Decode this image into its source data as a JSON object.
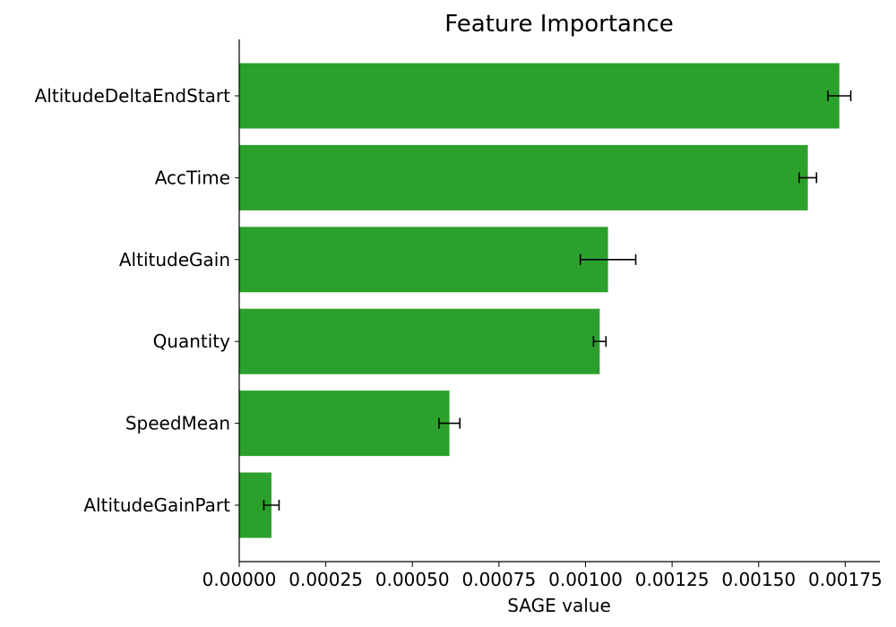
{
  "chart_data": {
    "type": "bar",
    "orientation": "horizontal",
    "title": "Feature Importance",
    "xlabel": "SAGE value",
    "ylabel": "",
    "categories": [
      "AltitudeDeltaEndStart",
      "AccTime",
      "AltitudeGain",
      "Quantity",
      "SpeedMean",
      "AltitudeGainPart"
    ],
    "values": [
      0.001733,
      0.001642,
      0.001065,
      0.001041,
      0.000607,
      9.3e-05
    ],
    "errors": [
      3.3e-05,
      2.5e-05,
      8e-05,
      1.8e-05,
      3e-05,
      2.2e-05
    ],
    "xlim": [
      0,
      0.00185
    ],
    "xticks": [
      0,
      0.00025,
      0.0005,
      0.00075,
      0.001,
      0.00125,
      0.0015,
      0.00175
    ],
    "xtick_labels": [
      "0.00000",
      "0.00025",
      "0.00050",
      "0.00075",
      "0.00100",
      "0.00125",
      "0.00150",
      "0.00175"
    ],
    "bar_color": "#2ca02c",
    "error_color": "#000000",
    "grid": false,
    "legend": "none"
  }
}
